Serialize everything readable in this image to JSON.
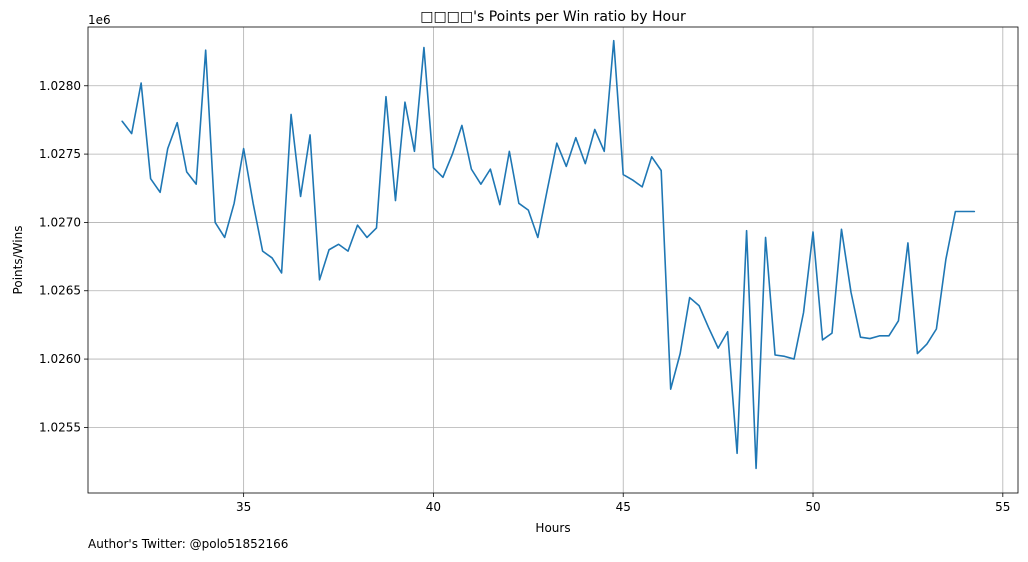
{
  "chart_data": {
    "type": "line",
    "title": "□□□□'s Points per Win ratio by Hour",
    "xlabel": "Hours",
    "ylabel": "Points/Wins",
    "offset_label": "1e6",
    "xlim": [
      30.9,
      55.4
    ],
    "ylim": [
      1.02502,
      1.02843
    ],
    "x_ticks": [
      35,
      40,
      45,
      50,
      55
    ],
    "x_tick_labels": [
      "35",
      "40",
      "45",
      "50",
      "55"
    ],
    "y_ticks": [
      1.0255,
      1.026,
      1.0265,
      1.027,
      1.0275,
      1.028
    ],
    "y_tick_labels": [
      "1.0255",
      "1.0260",
      "1.0265",
      "1.0270",
      "1.0275",
      "1.0280"
    ],
    "grid": true,
    "line_color": "#1f77b4",
    "series": [
      {
        "values": [
          [
            31.8,
            1.02774
          ],
          [
            32.05,
            1.02765
          ],
          [
            32.3,
            1.02802
          ],
          [
            32.55,
            1.02732
          ],
          [
            32.8,
            1.02722
          ],
          [
            33.0,
            1.02754
          ],
          [
            33.25,
            1.02773
          ],
          [
            33.5,
            1.02737
          ],
          [
            33.75,
            1.02728
          ],
          [
            34.0,
            1.02826
          ],
          [
            34.25,
            1.027
          ],
          [
            34.5,
            1.02689
          ],
          [
            34.75,
            1.02714
          ],
          [
            35.0,
            1.02754
          ],
          [
            35.25,
            1.02714
          ],
          [
            35.5,
            1.02679
          ],
          [
            35.75,
            1.02674
          ],
          [
            36.0,
            1.02663
          ],
          [
            36.25,
            1.02779
          ],
          [
            36.5,
            1.02719
          ],
          [
            36.75,
            1.02764
          ],
          [
            37.0,
            1.02658
          ],
          [
            37.25,
            1.0268
          ],
          [
            37.5,
            1.02684
          ],
          [
            37.75,
            1.02679
          ],
          [
            38.0,
            1.02698
          ],
          [
            38.25,
            1.02689
          ],
          [
            38.5,
            1.02696
          ],
          [
            38.75,
            1.02792
          ],
          [
            39.0,
            1.02716
          ],
          [
            39.25,
            1.02788
          ],
          [
            39.5,
            1.02752
          ],
          [
            39.75,
            1.02828
          ],
          [
            40.0,
            1.0274
          ],
          [
            40.25,
            1.02733
          ],
          [
            40.5,
            1.0275
          ],
          [
            40.75,
            1.02771
          ],
          [
            41.0,
            1.02739
          ],
          [
            41.25,
            1.02728
          ],
          [
            41.5,
            1.02739
          ],
          [
            41.75,
            1.02713
          ],
          [
            42.0,
            1.02752
          ],
          [
            42.25,
            1.02714
          ],
          [
            42.5,
            1.02709
          ],
          [
            42.75,
            1.02689
          ],
          [
            43.0,
            1.02724
          ],
          [
            43.25,
            1.02758
          ],
          [
            43.5,
            1.02741
          ],
          [
            43.75,
            1.02762
          ],
          [
            44.0,
            1.02743
          ],
          [
            44.25,
            1.02768
          ],
          [
            44.5,
            1.02752
          ],
          [
            44.75,
            1.02833
          ],
          [
            45.0,
            1.02735
          ],
          [
            45.25,
            1.02731
          ],
          [
            45.5,
            1.02726
          ],
          [
            45.75,
            1.02748
          ],
          [
            46.0,
            1.02738
          ],
          [
            46.25,
            1.02578
          ],
          [
            46.5,
            1.02604
          ],
          [
            46.75,
            1.02645
          ],
          [
            47.0,
            1.02639
          ],
          [
            47.25,
            1.02623
          ],
          [
            47.5,
            1.02608
          ],
          [
            47.75,
            1.0262
          ],
          [
            48.0,
            1.02531
          ],
          [
            48.25,
            1.02694
          ],
          [
            48.5,
            1.0252
          ],
          [
            48.75,
            1.02689
          ],
          [
            49.0,
            1.02603
          ],
          [
            49.25,
            1.02602
          ],
          [
            49.5,
            1.026
          ],
          [
            49.75,
            1.02634
          ],
          [
            50.0,
            1.02693
          ],
          [
            50.25,
            1.02614
          ],
          [
            50.5,
            1.02619
          ],
          [
            50.75,
            1.02695
          ],
          [
            51.0,
            1.02649
          ],
          [
            51.25,
            1.02616
          ],
          [
            51.5,
            1.02615
          ],
          [
            51.75,
            1.02617
          ],
          [
            52.0,
            1.02617
          ],
          [
            52.25,
            1.02628
          ],
          [
            52.5,
            1.02685
          ],
          [
            52.75,
            1.02604
          ],
          [
            53.0,
            1.02611
          ],
          [
            53.25,
            1.02622
          ],
          [
            53.5,
            1.02673
          ],
          [
            53.75,
            1.02708
          ],
          [
            54.0,
            1.02708
          ],
          [
            54.25,
            1.02708
          ]
        ]
      }
    ]
  },
  "footer": {
    "author_note": "Author's Twitter: @polo51852166"
  }
}
